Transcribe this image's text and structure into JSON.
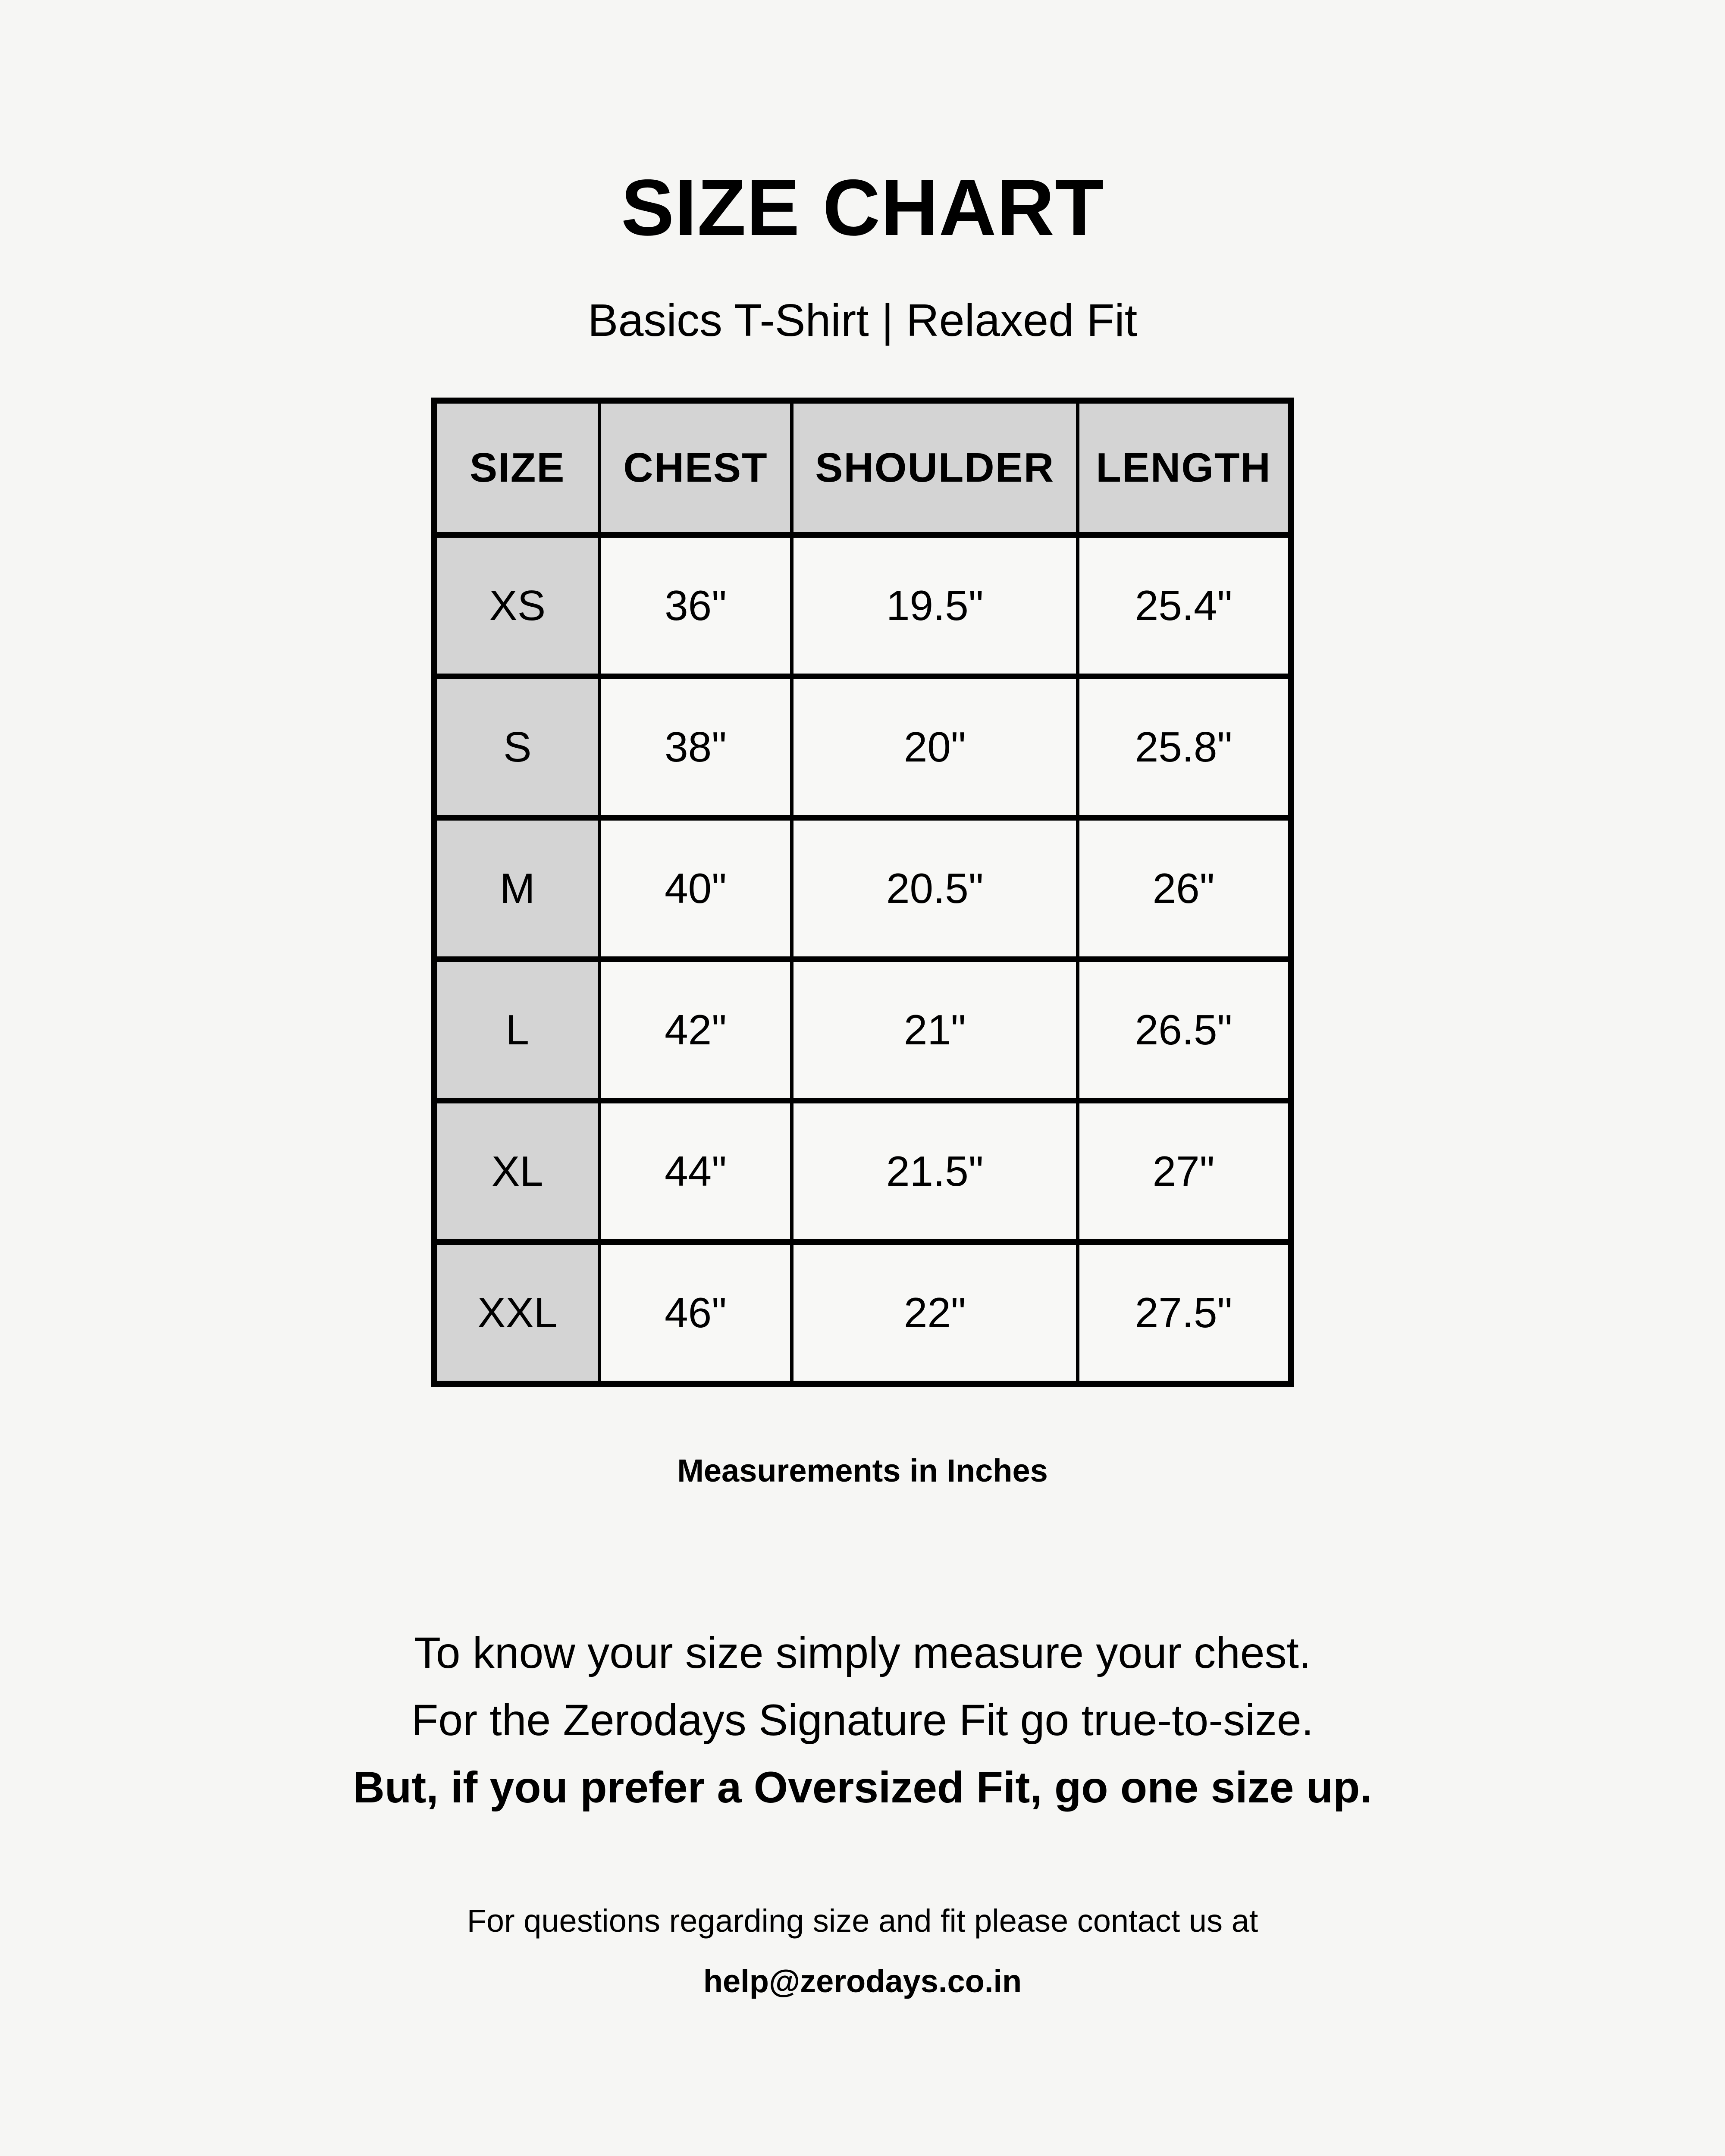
{
  "page": {
    "title": "SIZE CHART",
    "subtitle": "Basics T-Shirt | Relaxed Fit",
    "note": "Measurements in Inches"
  },
  "table": {
    "headers": [
      "SIZE",
      "CHEST",
      "SHOULDER",
      "LENGTH"
    ],
    "rows": [
      {
        "size": "XS",
        "chest": "36\"",
        "shoulder": "19.5\"",
        "length": "25.4\""
      },
      {
        "size": "S",
        "chest": "38\"",
        "shoulder": "20\"",
        "length": "25.8\""
      },
      {
        "size": "M",
        "chest": "40\"",
        "shoulder": "20.5\"",
        "length": "26\""
      },
      {
        "size": "L",
        "chest": "42\"",
        "shoulder": "21\"",
        "length": "26.5\""
      },
      {
        "size": "XL",
        "chest": "44\"",
        "shoulder": "21.5\"",
        "length": "27\""
      },
      {
        "size": "XXL",
        "chest": "46\"",
        "shoulder": "22\"",
        "length": "27.5\""
      }
    ]
  },
  "fit_info": {
    "line1": "To know your size simply measure your chest.",
    "line2": "For the Zerodays Signature Fit go true-to-size.",
    "line3": "But, if you prefer a Oversized Fit, go one size up."
  },
  "contact": {
    "line1": "For questions regarding size and fit please contact us at",
    "email": "help@zerodays.co.in"
  },
  "colors": {
    "background": "#f6f6f4",
    "header_cell_gray": "#d4d4d4",
    "body_cell": "#f8f8f6",
    "border": "#000000",
    "text": "#000000"
  }
}
